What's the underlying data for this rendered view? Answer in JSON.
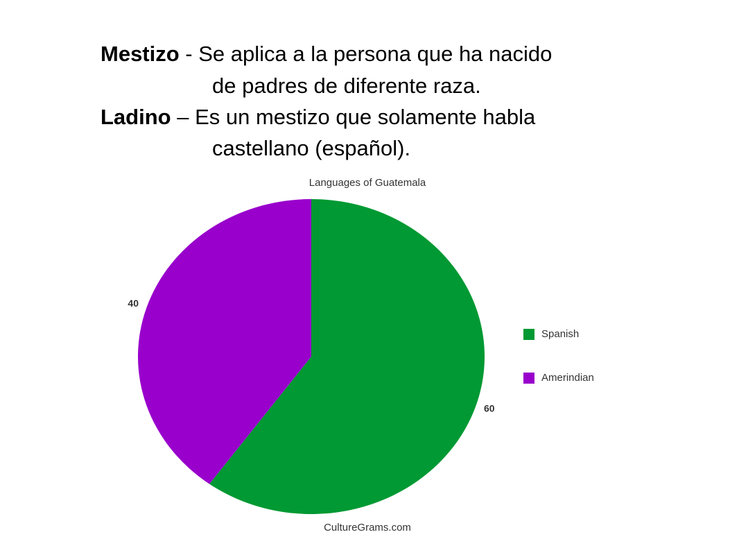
{
  "slide": {
    "lines": [
      {
        "term": "Mestizo",
        "text": " - Se aplica a la persona que ha nacido"
      },
      {
        "text": "de padres de diferente raza."
      },
      {
        "term": "Ladino",
        "text": " – Es un mestizo que solamente habla"
      },
      {
        "text": "castellano (español)."
      }
    ]
  },
  "chart_data": {
    "type": "pie",
    "title": "Languages of Guatemala",
    "source": "CultureGrams.com",
    "categories": [
      "Spanish",
      "Amerindian"
    ],
    "values": [
      60,
      40
    ],
    "colors": [
      "#009933",
      "#9900cc"
    ],
    "legend": "right"
  }
}
